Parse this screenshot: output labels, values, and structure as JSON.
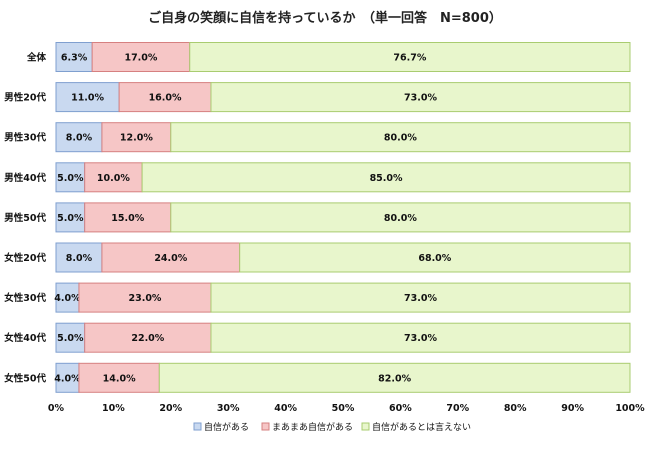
{
  "chart_data": {
    "type": "bar",
    "orientation": "horizontal",
    "stacked": true,
    "title": "ご自身の笑顔に自信を持っているか　（単一回答　N=800）",
    "categories": [
      "全体",
      "男性20代",
      "男性30代",
      "男性40代",
      "男性50代",
      "女性20代",
      "女性30代",
      "女性40代",
      "女性50代"
    ],
    "series": [
      {
        "name": "自信がある",
        "color": "#c9d9f0",
        "border": "#7f9fcf",
        "values": [
          6.3,
          11.0,
          8.0,
          5.0,
          5.0,
          8.0,
          4.0,
          5.0,
          4.0
        ]
      },
      {
        "name": "まあまあ自信がある",
        "color": "#f6c6c6",
        "border": "#d68080",
        "values": [
          17.0,
          16.0,
          12.0,
          10.0,
          15.0,
          24.0,
          23.0,
          22.0,
          14.0
        ]
      },
      {
        "name": "自信があるとは言えない",
        "color": "#e8f6cc",
        "border": "#a9cc70",
        "values": [
          76.7,
          73.0,
          80.0,
          85.0,
          80.0,
          68.0,
          73.0,
          73.0,
          82.0
        ]
      }
    ],
    "value_labels": [
      [
        "6.3%",
        "17.0%",
        "76.7%"
      ],
      [
        "11.0%",
        "16.0%",
        "73.0%"
      ],
      [
        "8.0%",
        "12.0%",
        "80.0%"
      ],
      [
        "5.0%",
        "10.0%",
        "85.0%"
      ],
      [
        "5.0%",
        "15.0%",
        "80.0%"
      ],
      [
        "8.0%",
        "24.0%",
        "68.0%"
      ],
      [
        "4.0%",
        "23.0%",
        "73.0%"
      ],
      [
        "5.0%",
        "22.0%",
        "73.0%"
      ],
      [
        "4.0%",
        "14.0%",
        "82.0%"
      ]
    ],
    "xlim": [
      0,
      100
    ],
    "xticks": [
      "0%",
      "10%",
      "20%",
      "30%",
      "40%",
      "50%",
      "60%",
      "70%",
      "80%",
      "90%",
      "100%"
    ],
    "legend_position": "bottom",
    "grid": false
  }
}
